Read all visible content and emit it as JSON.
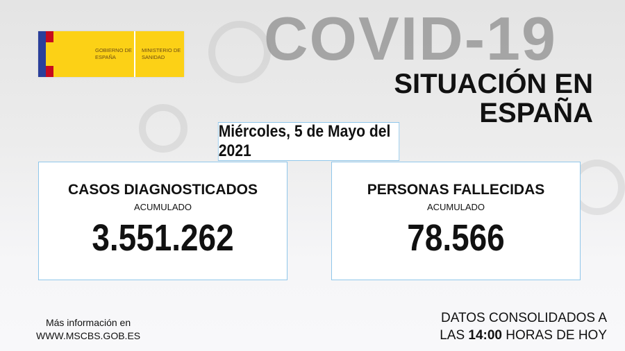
{
  "logo": {
    "gobierno": "GOBIERNO DE ESPAÑA",
    "ministerio": "MINISTERIO DE SANIDAD",
    "colors": {
      "yellow": "#fcd116",
      "blue": "#2a3f9a",
      "red": "#c60b1e"
    }
  },
  "title": "COVID-19",
  "subtitle_line1": "SITUACIÓN EN",
  "subtitle_line2": "ESPAÑA",
  "date": "Miércoles, 5 de Mayo del 2021",
  "cards": [
    {
      "label": "CASOS DIAGNOSTICADOS",
      "sub": "ACUMULADO",
      "value": "3.551.262"
    },
    {
      "label": "PERSONAS FALLECIDAS",
      "sub": "ACUMULADO",
      "value": "78.566"
    }
  ],
  "footer": {
    "info_line1": "Más información en",
    "info_line2": "WWW.MSCBS.GOB.ES",
    "cons_line1": "DATOS CONSOLIDADOS A",
    "cons_pre": "LAS",
    "cons_time": "14:00",
    "cons_post": "HORAS DE HOY"
  }
}
